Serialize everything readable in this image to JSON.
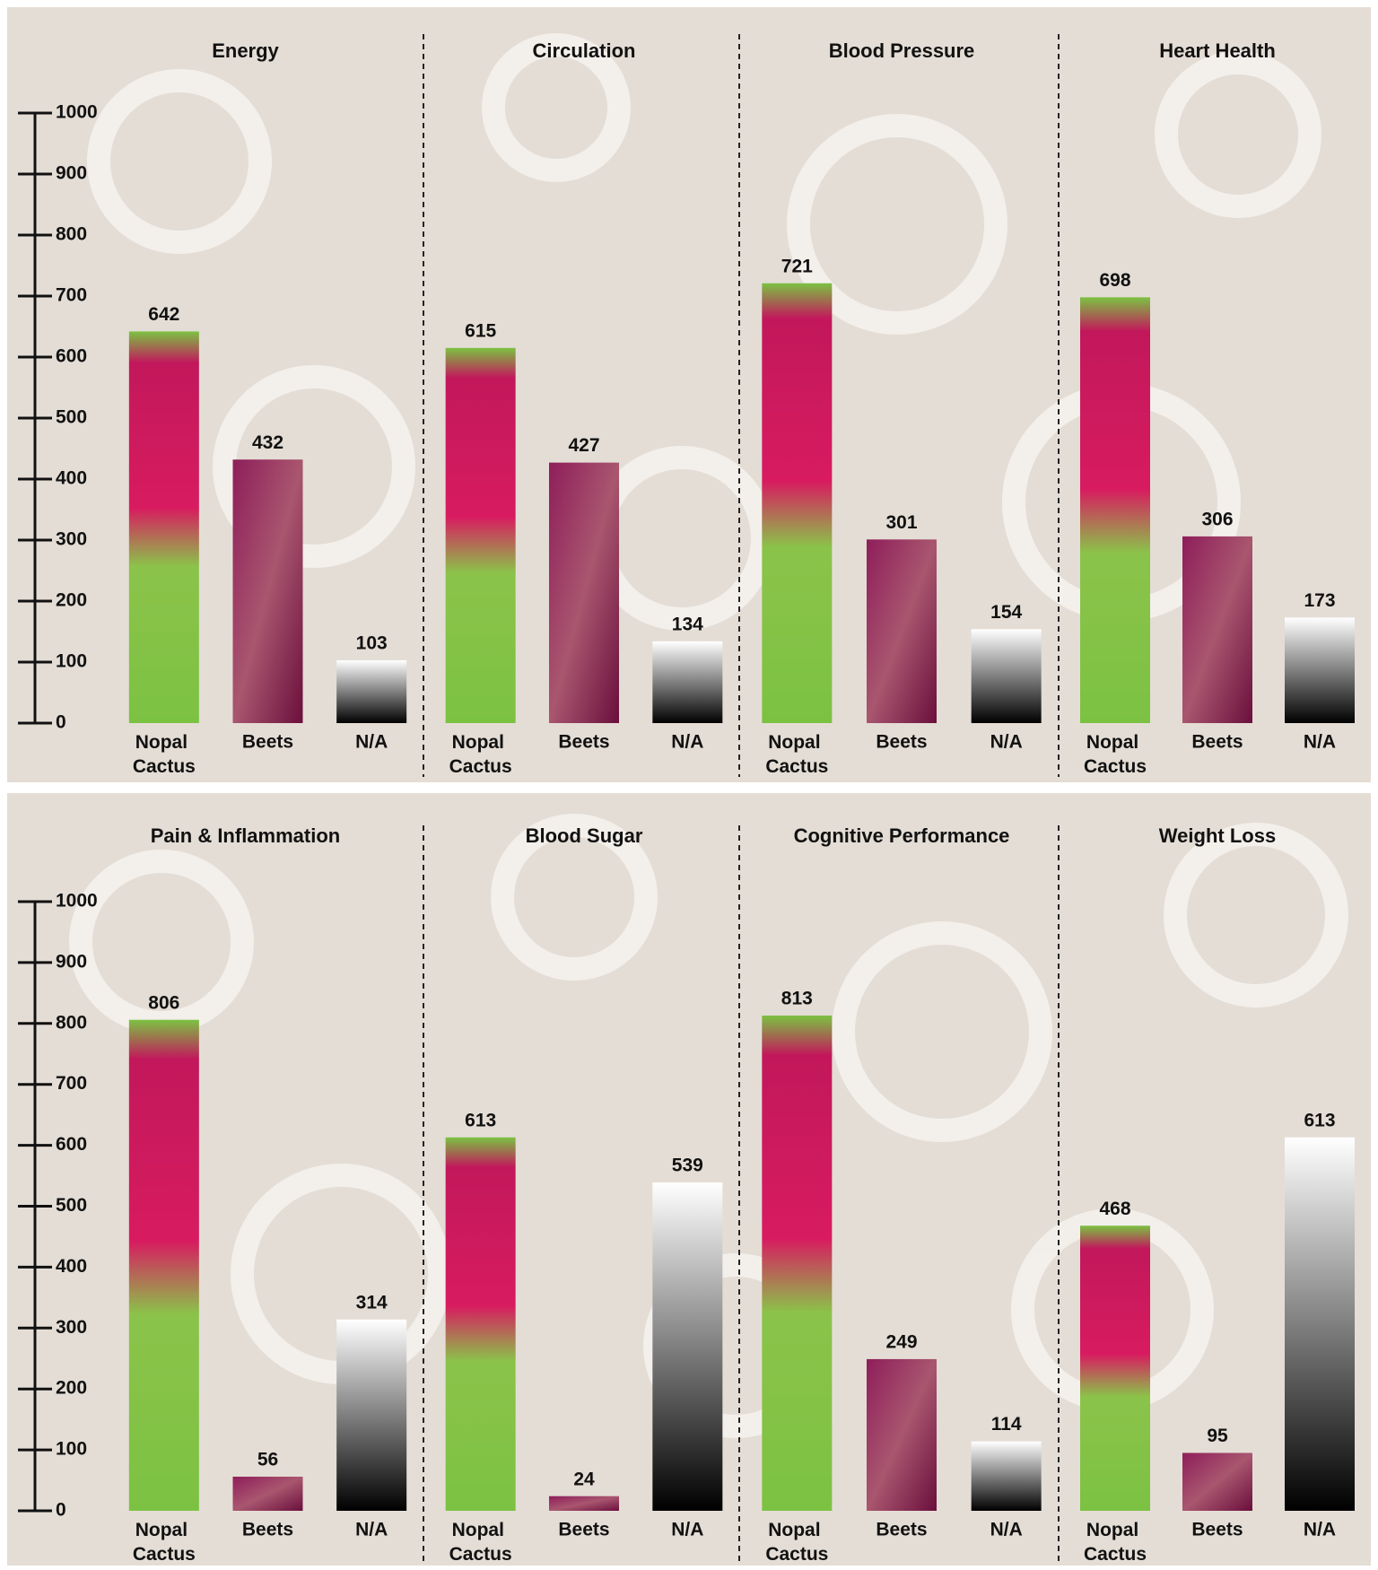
{
  "chart_data": [
    {
      "type": "bar",
      "title": "Energy",
      "categories": [
        "Nopal Cactus",
        "Beets",
        "N/A"
      ],
      "values": [
        642,
        432,
        103
      ],
      "ylim": [
        0,
        1000
      ],
      "yticks": [
        0,
        100,
        200,
        300,
        400,
        500,
        600,
        700,
        800,
        900,
        1000
      ]
    },
    {
      "type": "bar",
      "title": "Circulation",
      "categories": [
        "Nopal Cactus",
        "Beets",
        "N/A"
      ],
      "values": [
        615,
        427,
        134
      ],
      "ylim": [
        0,
        1000
      ]
    },
    {
      "type": "bar",
      "title": "Blood Pressure",
      "categories": [
        "Nopal Cactus",
        "Beets",
        "N/A"
      ],
      "values": [
        721,
        301,
        154
      ],
      "ylim": [
        0,
        1000
      ]
    },
    {
      "type": "bar",
      "title": "Heart Health",
      "categories": [
        "Nopal Cactus",
        "Beets",
        "N/A"
      ],
      "values": [
        698,
        306,
        173
      ],
      "ylim": [
        0,
        1000
      ]
    },
    {
      "type": "bar",
      "title": "Pain & Inflammation",
      "categories": [
        "Nopal Cactus",
        "Beets",
        "N/A"
      ],
      "values": [
        806,
        56,
        314
      ],
      "ylim": [
        0,
        1000
      ],
      "yticks": [
        0,
        100,
        200,
        300,
        400,
        500,
        600,
        700,
        800,
        900,
        1000
      ]
    },
    {
      "type": "bar",
      "title": "Blood Sugar",
      "categories": [
        "Nopal Cactus",
        "Beets",
        "N/A"
      ],
      "values": [
        613,
        24,
        539
      ],
      "ylim": [
        0,
        1000
      ]
    },
    {
      "type": "bar",
      "title": "Cognitive Performance",
      "categories": [
        "Nopal Cactus",
        "Beets",
        "N/A"
      ],
      "values": [
        813,
        249,
        114
      ],
      "ylim": [
        0,
        1000
      ]
    },
    {
      "type": "bar",
      "title": "Weight Loss",
      "categories": [
        "Nopal Cactus",
        "Beets",
        "N/A"
      ],
      "values": [
        468,
        95,
        613
      ],
      "ylim": [
        0,
        1000
      ]
    }
  ]
}
